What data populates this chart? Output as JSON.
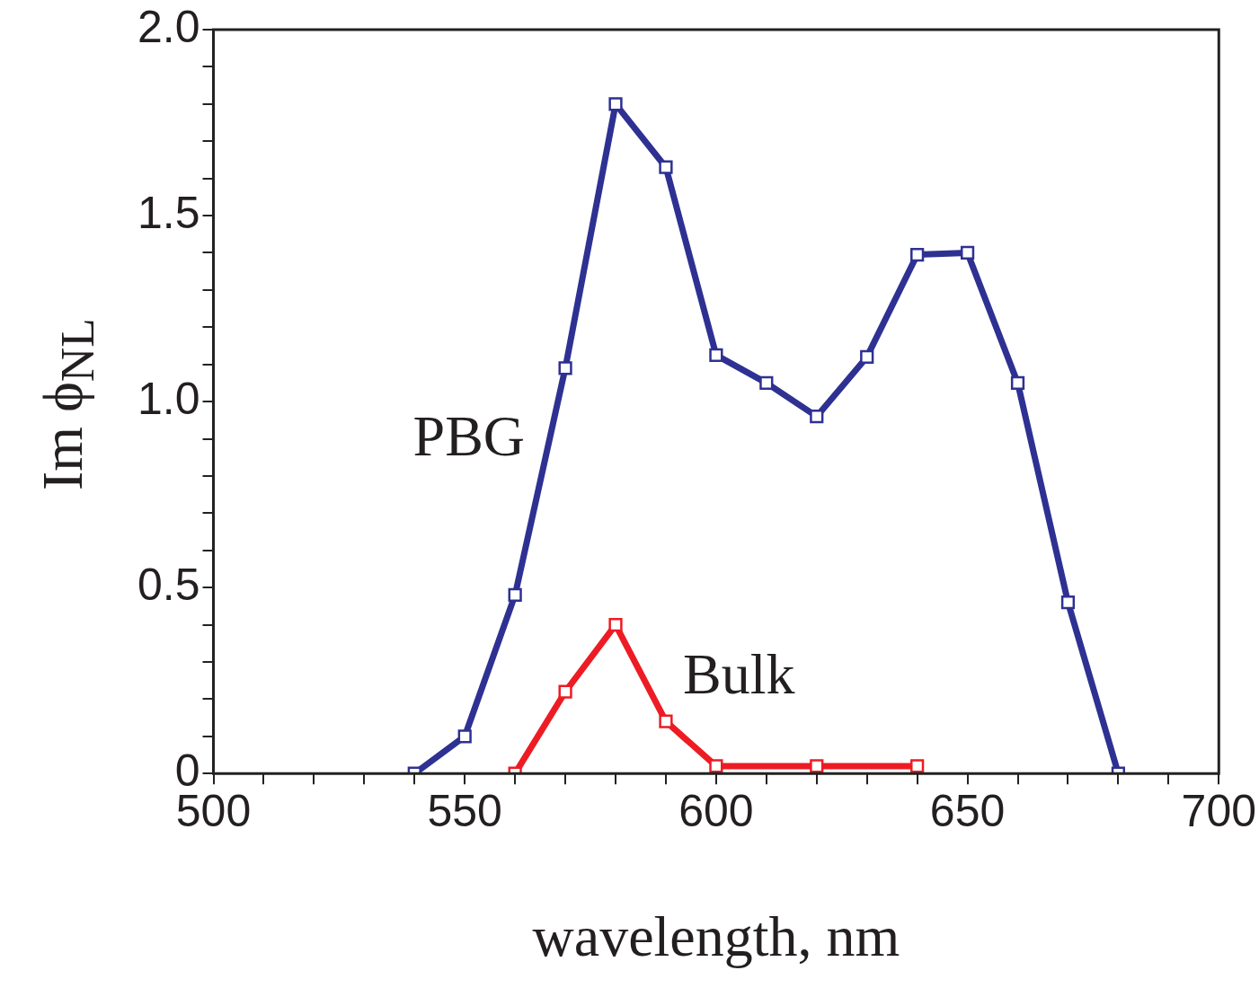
{
  "chart_data": {
    "type": "line",
    "xlabel": "wavelength, nm",
    "ylabel": "Im ϕ$_{NL}$",
    "xlim": [
      500,
      700
    ],
    "xticks": [
      500,
      {
        "value": 510,
        "label": null
      },
      {
        "value": 520,
        "label": null
      },
      {
        "value": 530,
        "label": null
      },
      {
        "value": 540,
        "label": null
      },
      550,
      {
        "value": 560,
        "label": null
      },
      {
        "value": 570,
        "label": null
      },
      {
        "value": 580,
        "label": null
      },
      {
        "value": 590,
        "label": null
      },
      600,
      {
        "value": 610,
        "label": null
      },
      {
        "value": 620,
        "label": null
      },
      {
        "value": 630,
        "label": null
      },
      {
        "value": 640,
        "label": null
      },
      650,
      {
        "value": 660,
        "label": null
      },
      {
        "value": 670,
        "label": null
      },
      {
        "value": 680,
        "label": null
      },
      {
        "value": 690,
        "label": null
      },
      700
    ],
    "ylim": [
      0,
      2.0
    ],
    "yticks": [
      0,
      {
        "value": 0.1,
        "label": null
      },
      {
        "value": 0.2,
        "label": null
      },
      {
        "value": 0.3,
        "label": null
      },
      {
        "value": 0.4,
        "label": null
      },
      0.5,
      {
        "value": 0.6,
        "label": null
      },
      {
        "value": 0.7,
        "label": null
      },
      {
        "value": 0.8,
        "label": null
      },
      {
        "value": 0.9,
        "label": null
      },
      {
        "value": 1.0,
        "label": "1.0"
      },
      {
        "value": 1.1,
        "label": null
      },
      {
        "value": 1.2,
        "label": null
      },
      {
        "value": 1.3,
        "label": null
      },
      {
        "value": 1.4,
        "label": null
      },
      1.5,
      {
        "value": 1.6,
        "label": null
      },
      {
        "value": 1.7,
        "label": null
      },
      {
        "value": 1.8,
        "label": null
      },
      {
        "value": 1.9,
        "label": null
      },
      {
        "value": 2.0,
        "label": "2.0"
      }
    ],
    "marker": "square",
    "line_style": "solid",
    "legend": false,
    "grid": false,
    "series": [
      {
        "name": "PBG",
        "color": "#2e3192",
        "x": [
          540,
          550,
          560,
          570,
          580,
          590,
          600,
          610,
          620,
          630,
          640,
          650,
          660,
          670,
          680
        ],
        "values": [
          0,
          0.1,
          0.48,
          1.09,
          1.8,
          1.63,
          1.125,
          1.05,
          0.96,
          1.12,
          1.395,
          1.4,
          1.05,
          0.46,
          0
        ]
      },
      {
        "name": "Bulk",
        "color": "#ed1c24",
        "x": [
          560,
          570,
          580,
          590,
          600,
          620,
          640
        ],
        "values": [
          0,
          0.22,
          0.4,
          0.14,
          0.02,
          0.02,
          0.02
        ]
      }
    ]
  }
}
